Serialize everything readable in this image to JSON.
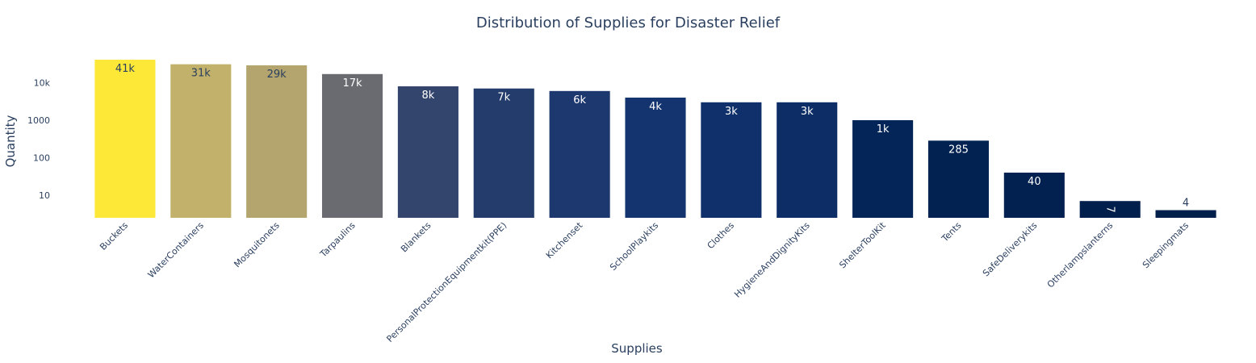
{
  "chart_data": {
    "type": "bar",
    "title": "Distribution of Supplies for Disaster Relief",
    "xlabel": "Supplies",
    "ylabel": "Quantity",
    "yscale": "log",
    "ylim": [
      2.5,
      50000
    ],
    "yticks": [
      {
        "value": 10,
        "label": "10"
      },
      {
        "value": 100,
        "label": "100"
      },
      {
        "value": 1000,
        "label": "1000"
      },
      {
        "value": 10000,
        "label": "10k"
      }
    ],
    "grid": false,
    "categories": [
      "Buckets",
      "WaterContainers",
      "Mosquitonets",
      "Tarpaulins",
      "Blankets",
      "PersonalProtectionEquipmentkit(PPE)",
      "Kitchenset",
      "SchoolPlaykits",
      "Clothes",
      "HygieneAndDignityKits",
      "ShelterToolKit",
      "Tents",
      "SafeDeliverykits",
      "Otherlampslanterns",
      "Sleepingmats"
    ],
    "values": [
      41000,
      31000,
      29000,
      17000,
      8000,
      7000,
      6000,
      4000,
      3000,
      3000,
      1000,
      285,
      40,
      7,
      4
    ],
    "data_labels": [
      "41k",
      "31k",
      "29k",
      "17k",
      "8k",
      "7k",
      "6k",
      "4k",
      "3k",
      "3k",
      "1k",
      "285",
      "40",
      "7",
      "4"
    ],
    "colors": [
      "#fde838",
      "#c2b16a",
      "#b3a56d",
      "#6a6b70",
      "#33456d",
      "#233c6b",
      "#1d386e",
      "#13346f",
      "#0f306a",
      "#0c2d66",
      "#032557",
      "#022351",
      "#022150",
      "#011f4d",
      "#021f4c"
    ],
    "label_colors": [
      "#2a3f5f",
      "#2a3f5f",
      "#2a3f5f",
      "#ffffff",
      "#ffffff",
      "#ffffff",
      "#ffffff",
      "#ffffff",
      "#ffffff",
      "#ffffff",
      "#ffffff",
      "#ffffff",
      "#ffffff",
      "#ffffff",
      "#2a3f5f"
    ],
    "label_positions": [
      "inside",
      "inside",
      "inside",
      "inside",
      "inside",
      "inside",
      "inside",
      "inside",
      "inside",
      "inside",
      "inside",
      "inside",
      "inside",
      "inside-rotated",
      "outside"
    ]
  }
}
